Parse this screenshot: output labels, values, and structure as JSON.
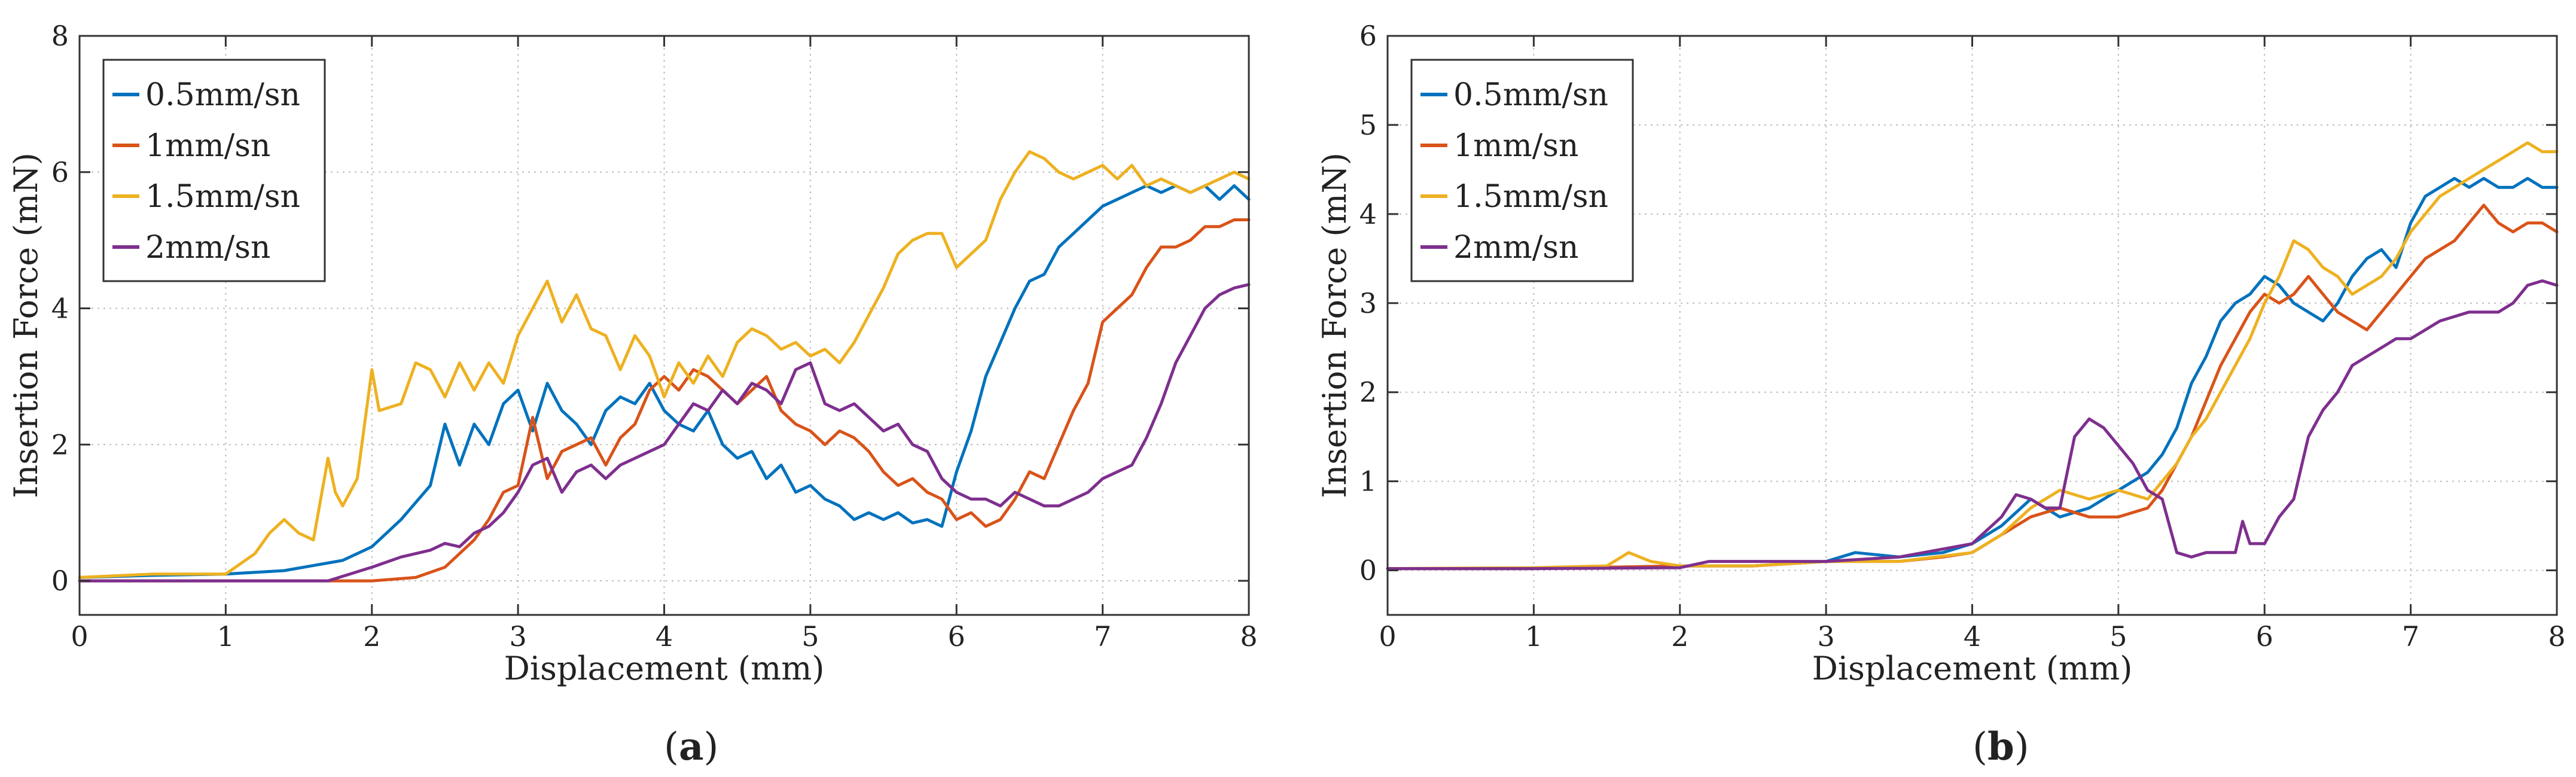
{
  "figure": {
    "panels": [
      "a",
      "b"
    ]
  },
  "chart_data": [
    {
      "id": "a",
      "type": "line",
      "caption_letter": "a",
      "xlabel": "Displacement (mm)",
      "ylabel": "Insertion Force (mN)",
      "xlim": [
        0,
        8
      ],
      "ylim": [
        -0.5,
        8
      ],
      "xticks": [
        0,
        1,
        2,
        3,
        4,
        5,
        6,
        7,
        8
      ],
      "yticks": [
        0,
        2,
        4,
        6,
        8
      ],
      "grid": true,
      "legend_position": "top-left",
      "series": [
        {
          "name": "0.5mm/sn",
          "color": "#0072BD",
          "x": [
            0,
            0.5,
            1,
            1.4,
            1.8,
            2.0,
            2.2,
            2.4,
            2.5,
            2.6,
            2.7,
            2.8,
            2.9,
            3.0,
            3.1,
            3.2,
            3.3,
            3.4,
            3.5,
            3.6,
            3.7,
            3.8,
            3.9,
            4.0,
            4.1,
            4.2,
            4.3,
            4.4,
            4.5,
            4.6,
            4.7,
            4.8,
            4.9,
            5.0,
            5.1,
            5.2,
            5.3,
            5.4,
            5.5,
            5.6,
            5.7,
            5.8,
            5.9,
            6.0,
            6.1,
            6.2,
            6.3,
            6.4,
            6.5,
            6.6,
            6.7,
            6.8,
            6.9,
            7.0,
            7.1,
            7.2,
            7.3,
            7.4,
            7.5,
            7.6,
            7.7,
            7.8,
            7.9,
            8.0
          ],
          "y": [
            0.05,
            0.08,
            0.1,
            0.15,
            0.3,
            0.5,
            0.9,
            1.4,
            2.3,
            1.7,
            2.3,
            2.0,
            2.6,
            2.8,
            2.2,
            2.9,
            2.5,
            2.3,
            2.0,
            2.5,
            2.7,
            2.6,
            2.9,
            2.5,
            2.3,
            2.2,
            2.5,
            2.0,
            1.8,
            1.9,
            1.5,
            1.7,
            1.3,
            1.4,
            1.2,
            1.1,
            0.9,
            1.0,
            0.9,
            1.0,
            0.85,
            0.9,
            0.8,
            1.6,
            2.2,
            3.0,
            3.5,
            4.0,
            4.4,
            4.5,
            4.9,
            5.1,
            5.3,
            5.5,
            5.6,
            5.7,
            5.8,
            5.7,
            5.8,
            5.7,
            5.8,
            5.6,
            5.8,
            5.6
          ]
        },
        {
          "name": "1mm/sn",
          "color": "#D95319",
          "x": [
            0,
            1,
            2,
            2.3,
            2.5,
            2.7,
            2.8,
            2.9,
            3.0,
            3.1,
            3.2,
            3.3,
            3.4,
            3.5,
            3.6,
            3.7,
            3.8,
            3.9,
            4.0,
            4.1,
            4.2,
            4.3,
            4.4,
            4.5,
            4.6,
            4.7,
            4.8,
            4.9,
            5.0,
            5.1,
            5.2,
            5.3,
            5.4,
            5.5,
            5.6,
            5.7,
            5.8,
            5.9,
            6.0,
            6.1,
            6.2,
            6.3,
            6.4,
            6.5,
            6.6,
            6.7,
            6.8,
            6.9,
            7.0,
            7.1,
            7.2,
            7.3,
            7.4,
            7.5,
            7.6,
            7.7,
            7.8,
            7.9,
            8.0
          ],
          "y": [
            0,
            0,
            0,
            0.05,
            0.2,
            0.6,
            0.9,
            1.3,
            1.4,
            2.4,
            1.5,
            1.9,
            2.0,
            2.1,
            1.7,
            2.1,
            2.3,
            2.8,
            3.0,
            2.8,
            3.1,
            3.0,
            2.8,
            2.6,
            2.8,
            3.0,
            2.5,
            2.3,
            2.2,
            2.0,
            2.2,
            2.1,
            1.9,
            1.6,
            1.4,
            1.5,
            1.3,
            1.2,
            0.9,
            1.0,
            0.8,
            0.9,
            1.2,
            1.6,
            1.5,
            2.0,
            2.5,
            2.9,
            3.8,
            4.0,
            4.2,
            4.6,
            4.9,
            4.9,
            5.0,
            5.2,
            5.2,
            5.3,
            5.3
          ]
        },
        {
          "name": "1.5mm/sn",
          "color": "#EDB120",
          "x": [
            0,
            0.5,
            1.0,
            1.2,
            1.3,
            1.4,
            1.5,
            1.6,
            1.7,
            1.75,
            1.8,
            1.9,
            2.0,
            2.05,
            2.2,
            2.3,
            2.4,
            2.5,
            2.6,
            2.7,
            2.8,
            2.9,
            3.0,
            3.1,
            3.2,
            3.3,
            3.4,
            3.5,
            3.6,
            3.7,
            3.8,
            3.9,
            4.0,
            4.1,
            4.2,
            4.3,
            4.4,
            4.5,
            4.6,
            4.7,
            4.8,
            4.9,
            5.0,
            5.1,
            5.2,
            5.3,
            5.4,
            5.5,
            5.6,
            5.7,
            5.8,
            5.9,
            6.0,
            6.1,
            6.2,
            6.3,
            6.4,
            6.5,
            6.6,
            6.7,
            6.8,
            6.9,
            7.0,
            7.1,
            7.2,
            7.3,
            7.4,
            7.5,
            7.6,
            7.7,
            7.8,
            7.9,
            8.0
          ],
          "y": [
            0.05,
            0.1,
            0.1,
            0.4,
            0.7,
            0.9,
            0.7,
            0.6,
            1.8,
            1.3,
            1.1,
            1.5,
            3.1,
            2.5,
            2.6,
            3.2,
            3.1,
            2.7,
            3.2,
            2.8,
            3.2,
            2.9,
            3.6,
            4.0,
            4.4,
            3.8,
            4.2,
            3.7,
            3.6,
            3.1,
            3.6,
            3.3,
            2.7,
            3.2,
            2.9,
            3.3,
            3.0,
            3.5,
            3.7,
            3.6,
            3.4,
            3.5,
            3.3,
            3.4,
            3.2,
            3.5,
            3.9,
            4.3,
            4.8,
            5.0,
            5.1,
            5.1,
            4.6,
            4.8,
            5.0,
            5.6,
            6.0,
            6.3,
            6.2,
            6.0,
            5.9,
            6.0,
            6.1,
            5.9,
            6.1,
            5.8,
            5.9,
            5.8,
            5.7,
            5.8,
            5.9,
            6.0,
            5.9
          ]
        },
        {
          "name": "2mm/sn",
          "color": "#7E2F8E",
          "x": [
            0,
            1,
            1.7,
            2.0,
            2.2,
            2.4,
            2.5,
            2.6,
            2.7,
            2.8,
            2.9,
            3.0,
            3.1,
            3.2,
            3.3,
            3.4,
            3.5,
            3.6,
            3.7,
            3.8,
            3.9,
            4.0,
            4.1,
            4.2,
            4.3,
            4.4,
            4.5,
            4.6,
            4.7,
            4.8,
            4.9,
            5.0,
            5.1,
            5.2,
            5.3,
            5.4,
            5.5,
            5.6,
            5.7,
            5.8,
            5.9,
            6.0,
            6.1,
            6.2,
            6.3,
            6.4,
            6.5,
            6.6,
            6.7,
            6.8,
            6.9,
            7.0,
            7.1,
            7.2,
            7.3,
            7.4,
            7.5,
            7.6,
            7.7,
            7.8,
            7.9,
            8.0
          ],
          "y": [
            0,
            0,
            0,
            0.2,
            0.35,
            0.45,
            0.55,
            0.5,
            0.7,
            0.8,
            1.0,
            1.3,
            1.7,
            1.8,
            1.3,
            1.6,
            1.7,
            1.5,
            1.7,
            1.8,
            1.9,
            2.0,
            2.3,
            2.6,
            2.5,
            2.8,
            2.6,
            2.9,
            2.8,
            2.6,
            3.1,
            3.2,
            2.6,
            2.5,
            2.6,
            2.4,
            2.2,
            2.3,
            2.0,
            1.9,
            1.5,
            1.3,
            1.2,
            1.2,
            1.1,
            1.3,
            1.2,
            1.1,
            1.1,
            1.2,
            1.3,
            1.5,
            1.6,
            1.7,
            2.1,
            2.6,
            3.2,
            3.6,
            4.0,
            4.2,
            4.3,
            4.35
          ]
        }
      ]
    },
    {
      "id": "b",
      "type": "line",
      "caption_letter": "b",
      "xlabel": "Displacement (mm)",
      "ylabel": "Insertion Force (mN)",
      "xlim": [
        0,
        8
      ],
      "ylim": [
        -0.5,
        6
      ],
      "xticks": [
        0,
        1,
        2,
        3,
        4,
        5,
        6,
        7,
        8
      ],
      "yticks": [
        0,
        1,
        2,
        3,
        4,
        5,
        6
      ],
      "grid": true,
      "legend_position": "top-left",
      "series": [
        {
          "name": "0.5mm/sn",
          "color": "#0072BD",
          "x": [
            0,
            1,
            2,
            2.5,
            3.0,
            3.2,
            3.5,
            3.8,
            4.0,
            4.2,
            4.4,
            4.6,
            4.8,
            5.0,
            5.2,
            5.3,
            5.4,
            5.5,
            5.6,
            5.7,
            5.8,
            5.9,
            6.0,
            6.1,
            6.2,
            6.3,
            6.4,
            6.5,
            6.6,
            6.7,
            6.8,
            6.9,
            7.0,
            7.1,
            7.2,
            7.3,
            7.4,
            7.5,
            7.6,
            7.7,
            7.8,
            7.9,
            8.0
          ],
          "y": [
            0.02,
            0.02,
            0.05,
            0.05,
            0.1,
            0.2,
            0.15,
            0.2,
            0.3,
            0.5,
            0.8,
            0.6,
            0.7,
            0.9,
            1.1,
            1.3,
            1.6,
            2.1,
            2.4,
            2.8,
            3.0,
            3.1,
            3.3,
            3.2,
            3.0,
            2.9,
            2.8,
            3.0,
            3.3,
            3.5,
            3.6,
            3.4,
            3.9,
            4.2,
            4.3,
            4.4,
            4.3,
            4.4,
            4.3,
            4.3,
            4.4,
            4.3,
            4.3
          ]
        },
        {
          "name": "1mm/sn",
          "color": "#D95319",
          "x": [
            0,
            1,
            2,
            2.5,
            3.0,
            3.5,
            3.8,
            4.0,
            4.2,
            4.4,
            4.6,
            4.8,
            5.0,
            5.2,
            5.3,
            5.4,
            5.5,
            5.6,
            5.7,
            5.8,
            5.9,
            6.0,
            6.1,
            6.2,
            6.3,
            6.4,
            6.5,
            6.6,
            6.7,
            6.8,
            6.9,
            7.0,
            7.1,
            7.2,
            7.3,
            7.4,
            7.5,
            7.6,
            7.7,
            7.8,
            7.9,
            8.0
          ],
          "y": [
            0.02,
            0.02,
            0.05,
            0.05,
            0.1,
            0.1,
            0.15,
            0.2,
            0.4,
            0.6,
            0.7,
            0.6,
            0.6,
            0.7,
            0.9,
            1.2,
            1.5,
            1.9,
            2.3,
            2.6,
            2.9,
            3.1,
            3.0,
            3.1,
            3.3,
            3.1,
            2.9,
            2.8,
            2.7,
            2.9,
            3.1,
            3.3,
            3.5,
            3.6,
            3.7,
            3.9,
            4.1,
            3.9,
            3.8,
            3.9,
            3.9,
            3.8
          ]
        },
        {
          "name": "1.5mm/sn",
          "color": "#EDB120",
          "x": [
            0,
            1,
            1.5,
            1.65,
            1.8,
            2.0,
            2.5,
            3.0,
            3.5,
            4.0,
            4.2,
            4.4,
            4.6,
            4.8,
            5.0,
            5.2,
            5.4,
            5.5,
            5.6,
            5.7,
            5.8,
            5.9,
            6.0,
            6.1,
            6.2,
            6.3,
            6.4,
            6.5,
            6.6,
            6.7,
            6.8,
            6.9,
            7.0,
            7.1,
            7.2,
            7.3,
            7.4,
            7.5,
            7.6,
            7.7,
            7.8,
            7.9,
            8.0
          ],
          "y": [
            0.02,
            0.03,
            0.05,
            0.2,
            0.1,
            0.05,
            0.05,
            0.1,
            0.1,
            0.2,
            0.4,
            0.7,
            0.9,
            0.8,
            0.9,
            0.8,
            1.2,
            1.5,
            1.7,
            2.0,
            2.3,
            2.6,
            3.0,
            3.3,
            3.7,
            3.6,
            3.4,
            3.3,
            3.1,
            3.2,
            3.3,
            3.5,
            3.8,
            4.0,
            4.2,
            4.3,
            4.4,
            4.5,
            4.6,
            4.7,
            4.8,
            4.7,
            4.7
          ]
        },
        {
          "name": "2mm/sn",
          "color": "#7E2F8E",
          "x": [
            0,
            1,
            2,
            2.2,
            2.5,
            3.0,
            3.5,
            4.0,
            4.2,
            4.3,
            4.4,
            4.5,
            4.6,
            4.7,
            4.8,
            4.9,
            5.0,
            5.1,
            5.2,
            5.3,
            5.4,
            5.5,
            5.6,
            5.7,
            5.8,
            5.85,
            5.9,
            6.0,
            6.1,
            6.2,
            6.3,
            6.4,
            6.5,
            6.6,
            6.7,
            6.8,
            6.9,
            7.0,
            7.2,
            7.4,
            7.6,
            7.7,
            7.8,
            7.9,
            8.0
          ],
          "y": [
            0.02,
            0.02,
            0.03,
            0.1,
            0.1,
            0.1,
            0.15,
            0.3,
            0.6,
            0.85,
            0.8,
            0.7,
            0.7,
            1.5,
            1.7,
            1.6,
            1.4,
            1.2,
            0.9,
            0.8,
            0.2,
            0.15,
            0.2,
            0.2,
            0.2,
            0.55,
            0.3,
            0.3,
            0.6,
            0.8,
            1.5,
            1.8,
            2.0,
            2.3,
            2.4,
            2.5,
            2.6,
            2.6,
            2.8,
            2.9,
            2.9,
            3.0,
            3.2,
            3.25,
            3.2
          ]
        }
      ]
    }
  ]
}
